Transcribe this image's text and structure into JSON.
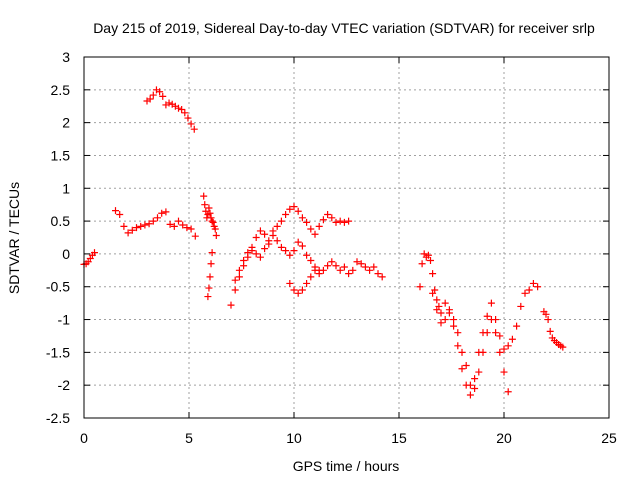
{
  "chart_data": {
    "type": "scatter",
    "title": "Day 215 of 2019, Sidereal Day-to-day VTEC variation (SDTVAR) for receiver srlp",
    "xlabel": "GPS time / hours",
    "ylabel": "SDTVAR / TECUs",
    "xlim": [
      0,
      25
    ],
    "ylim": [
      -2.5,
      3
    ],
    "xticks": [
      0,
      5,
      10,
      15,
      20,
      25
    ],
    "yticks": [
      -2.5,
      -2,
      -1.5,
      -1,
      -0.5,
      0,
      0.5,
      1,
      1.5,
      2,
      2.5,
      3
    ],
    "xtick_labels": [
      "0",
      "5",
      "10",
      "15",
      "20",
      "25"
    ],
    "ytick_labels": [
      "-2.5",
      "-2",
      "-1.5",
      "-1",
      "-0.5",
      "0",
      "0.5",
      "1",
      "1.5",
      "2",
      "2.5",
      "3"
    ],
    "grid": true,
    "marker": "plus",
    "color": "#ff0000",
    "series": [
      {
        "x": [
          0.0,
          0.1,
          0.2,
          0.3,
          0.4,
          0.5
        ],
        "y": [
          -0.16,
          -0.15,
          -0.12,
          -0.07,
          -0.02,
          0.02
        ]
      },
      {
        "x": [
          1.5,
          1.7,
          1.9,
          2.1,
          2.3,
          2.5,
          2.7,
          2.9,
          3.1,
          3.3,
          3.5,
          3.7,
          3.9,
          4.1,
          4.3,
          4.5,
          4.7,
          4.9,
          5.1,
          5.3
        ],
        "y": [
          0.66,
          0.6,
          0.42,
          0.32,
          0.36,
          0.4,
          0.42,
          0.44,
          0.46,
          0.5,
          0.55,
          0.62,
          0.64,
          0.45,
          0.42,
          0.5,
          0.44,
          0.4,
          0.38,
          0.27
        ]
      },
      {
        "x": [
          3.0,
          3.15,
          3.3,
          3.45,
          3.6,
          3.75,
          3.9,
          4.05,
          4.2,
          4.35,
          4.5,
          4.65,
          4.8,
          4.95,
          5.1,
          5.25
        ],
        "y": [
          2.33,
          2.36,
          2.42,
          2.5,
          2.47,
          2.4,
          2.27,
          2.3,
          2.28,
          2.25,
          2.22,
          2.2,
          2.15,
          2.07,
          1.98,
          1.9
        ]
      },
      {
        "x": [
          5.7,
          5.75,
          5.8,
          5.85,
          5.9,
          5.95,
          6.0,
          6.05,
          6.1,
          6.15,
          6.2,
          6.25,
          6.3
        ],
        "y": [
          0.88,
          0.75,
          0.65,
          0.55,
          0.6,
          0.7,
          0.62,
          0.55,
          0.5,
          0.48,
          0.42,
          0.38,
          0.28
        ]
      },
      {
        "x": [
          5.9,
          5.95,
          6.0,
          6.05,
          6.1
        ],
        "y": [
          -0.65,
          -0.52,
          -0.35,
          -0.15,
          0.02
        ]
      },
      {
        "x": [
          7.0,
          7.2,
          7.4,
          7.6,
          7.8,
          8.0,
          8.2,
          8.4,
          8.6,
          8.8,
          9.0,
          9.2,
          9.4,
          9.6,
          9.8,
          10.0,
          10.2,
          10.4,
          10.6,
          10.8,
          11.0,
          11.2,
          11.4,
          11.6,
          11.8,
          12.0,
          12.2,
          12.4,
          12.6
        ],
        "y": [
          -0.78,
          -0.55,
          -0.35,
          -0.18,
          -0.05,
          0.1,
          0.25,
          0.35,
          0.3,
          0.2,
          0.35,
          0.42,
          0.5,
          0.6,
          0.68,
          0.72,
          0.65,
          0.55,
          0.48,
          0.38,
          0.3,
          0.42,
          0.52,
          0.6,
          0.55,
          0.48,
          0.5,
          0.48,
          0.5
        ]
      },
      {
        "x": [
          7.2,
          7.4,
          7.6,
          7.8,
          8.0,
          8.2,
          8.4,
          8.6,
          8.8,
          9.0,
          9.2,
          9.4,
          9.6,
          9.8,
          10.0,
          10.2,
          10.4,
          10.6,
          10.8,
          11.0,
          11.2
        ],
        "y": [
          -0.4,
          -0.25,
          -0.1,
          0.02,
          0.05,
          0.0,
          -0.05,
          0.08,
          0.15,
          0.28,
          0.2,
          0.1,
          0.05,
          -0.02,
          0.05,
          0.18,
          0.12,
          -0.02,
          -0.1,
          -0.2,
          -0.25
        ]
      },
      {
        "x": [
          9.8,
          10.0,
          10.2,
          10.4,
          10.6,
          10.8,
          11.0,
          11.2,
          11.4,
          11.6,
          11.8,
          12.0,
          12.2,
          12.4,
          12.6,
          12.8,
          13.0,
          13.2,
          13.4,
          13.6,
          13.8,
          14.0,
          14.2
        ],
        "y": [
          -0.45,
          -0.55,
          -0.6,
          -0.55,
          -0.45,
          -0.35,
          -0.25,
          -0.3,
          -0.25,
          -0.18,
          -0.12,
          -0.18,
          -0.25,
          -0.2,
          -0.3,
          -0.25,
          -0.12,
          -0.15,
          -0.2,
          -0.25,
          -0.2,
          -0.3,
          -0.35
        ]
      },
      {
        "x": [
          16.0,
          16.1,
          16.2,
          16.3,
          16.4,
          16.5,
          16.6,
          16.7,
          16.8,
          16.9,
          17.0,
          17.2,
          17.4,
          17.6,
          17.8,
          18.0,
          18.2,
          18.4,
          18.6,
          18.8,
          19.0,
          19.2,
          19.4,
          19.6,
          19.8,
          20.0,
          20.2,
          20.4,
          20.6,
          20.8,
          21.0,
          21.2,
          21.4,
          21.6
        ],
        "y": [
          -0.5,
          -0.15,
          0.0,
          -0.05,
          -0.02,
          -0.1,
          -0.3,
          -0.55,
          -0.7,
          -0.8,
          -0.9,
          -0.75,
          -0.9,
          -1.1,
          -1.4,
          -1.75,
          -2.0,
          -2.15,
          -1.9,
          -1.5,
          -1.2,
          -0.95,
          -0.75,
          -1.0,
          -1.25,
          -1.45,
          -1.4,
          -1.3,
          -1.1,
          -0.8,
          -0.6,
          -0.55,
          -0.45,
          -0.5
        ]
      },
      {
        "x": [
          16.6,
          16.8,
          17.0,
          17.2,
          17.4,
          17.6,
          17.8,
          18.0,
          18.2,
          18.4,
          18.6,
          18.8,
          19.0,
          19.2,
          19.4,
          19.6,
          19.8,
          20.0,
          20.2
        ],
        "y": [
          -0.6,
          -0.85,
          -1.05,
          -1.0,
          -0.85,
          -1.0,
          -1.2,
          -1.5,
          -1.7,
          -2.0,
          -2.05,
          -1.8,
          -1.5,
          -1.2,
          -1.0,
          -1.2,
          -1.5,
          -1.8,
          -2.1
        ]
      },
      {
        "x": [
          21.9,
          22.0,
          22.1,
          22.2,
          22.3,
          22.4,
          22.5,
          22.6,
          22.7,
          22.8
        ],
        "y": [
          -0.88,
          -0.92,
          -1.0,
          -1.18,
          -1.28,
          -1.32,
          -1.35,
          -1.38,
          -1.4,
          -1.42
        ]
      }
    ]
  }
}
